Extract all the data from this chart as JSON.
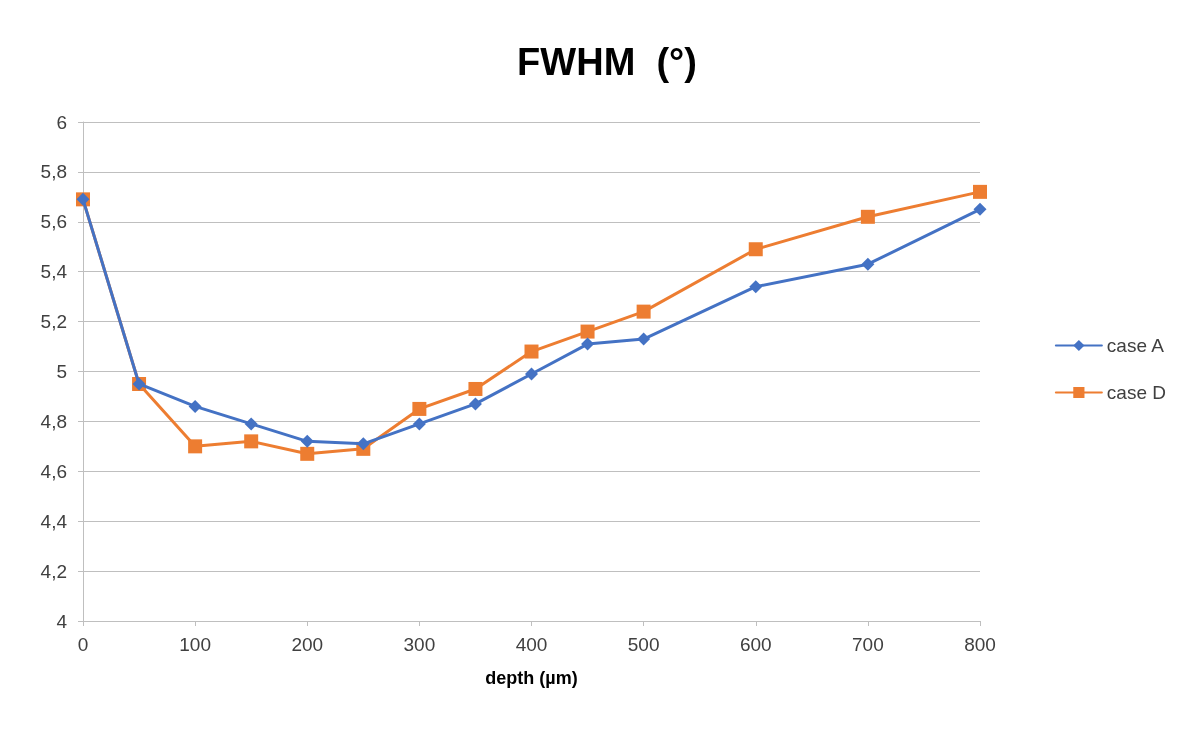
{
  "chart_data": {
    "type": "line",
    "title": "FWHM  (°)",
    "xlabel": "depth (µm)",
    "x": [
      0,
      50,
      100,
      150,
      200,
      250,
      300,
      350,
      400,
      450,
      500,
      600,
      700,
      800
    ],
    "series": [
      {
        "name": "case A",
        "color": "#4472c4",
        "marker": "diamond",
        "values": [
          5.69,
          4.95,
          4.86,
          4.79,
          4.72,
          4.71,
          4.79,
          4.87,
          4.99,
          5.11,
          5.13,
          5.34,
          5.43,
          5.65
        ]
      },
      {
        "name": "case D",
        "color": "#ed7d31",
        "marker": "square",
        "values": [
          5.69,
          4.95,
          4.7,
          4.72,
          4.67,
          4.69,
          4.85,
          4.93,
          5.08,
          5.16,
          5.24,
          5.49,
          5.62,
          5.72
        ]
      }
    ],
    "xlim": [
      0,
      800
    ],
    "xticks": [
      0,
      100,
      200,
      300,
      400,
      500,
      600,
      700,
      800
    ],
    "ylim": [
      4,
      6
    ],
    "yticks": [
      4,
      {
        "value": 4.2,
        "label": "4,2"
      },
      {
        "value": 4.4,
        "label": "4,4"
      },
      {
        "value": 4.6,
        "label": "4,6"
      },
      {
        "value": 4.8,
        "label": "4,8"
      },
      5,
      {
        "value": 5.2,
        "label": "5,2"
      },
      {
        "value": 5.4,
        "label": "5,4"
      },
      {
        "value": 5.6,
        "label": "5,6"
      },
      {
        "value": 5.8,
        "label": "5,8"
      },
      6
    ],
    "grid": "y",
    "legend": "right",
    "line_style": "solid"
  }
}
